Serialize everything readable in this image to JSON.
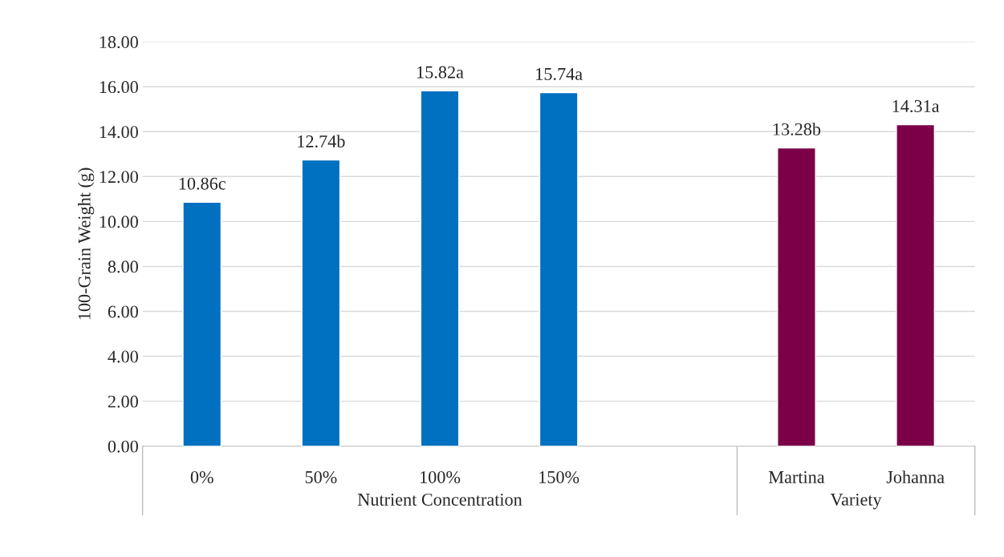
{
  "chart_data": {
    "type": "bar",
    "ylabel": "100-Grain Weight (g)",
    "categories": [
      "0%",
      "50%",
      "100%",
      "150%",
      null,
      "Martina",
      "Johanna"
    ],
    "values": [
      10.86,
      12.74,
      15.82,
      15.74,
      null,
      13.28,
      14.31
    ],
    "colors": [
      "#0070c0",
      "#0070c0",
      "#0070c0",
      "#0070c0",
      "#0070c0",
      "#7b0048",
      "#7b0048"
    ],
    "value_labels": [
      "10.86c",
      "12.74b",
      "15.82a",
      "15.74a",
      null,
      "13.28b",
      "14.31a"
    ],
    "ylim": [
      0,
      18
    ],
    "yticks": [
      {
        "value": 0,
        "label": "0.00"
      },
      {
        "value": 2,
        "label": "2.00"
      },
      {
        "value": 4,
        "label": "4.00"
      },
      {
        "value": 6,
        "label": "6.00"
      },
      {
        "value": 8,
        "label": "8.00"
      },
      {
        "value": 10,
        "label": "10.00"
      },
      {
        "value": 12,
        "label": "12.00"
      },
      {
        "value": 14,
        "label": "14.00"
      },
      {
        "value": 16,
        "label": "16.00"
      },
      {
        "value": 18,
        "label": "18.00"
      }
    ],
    "grid": "y",
    "annotations": [
      "Nutrient Concentration",
      "Variety"
    ]
  }
}
